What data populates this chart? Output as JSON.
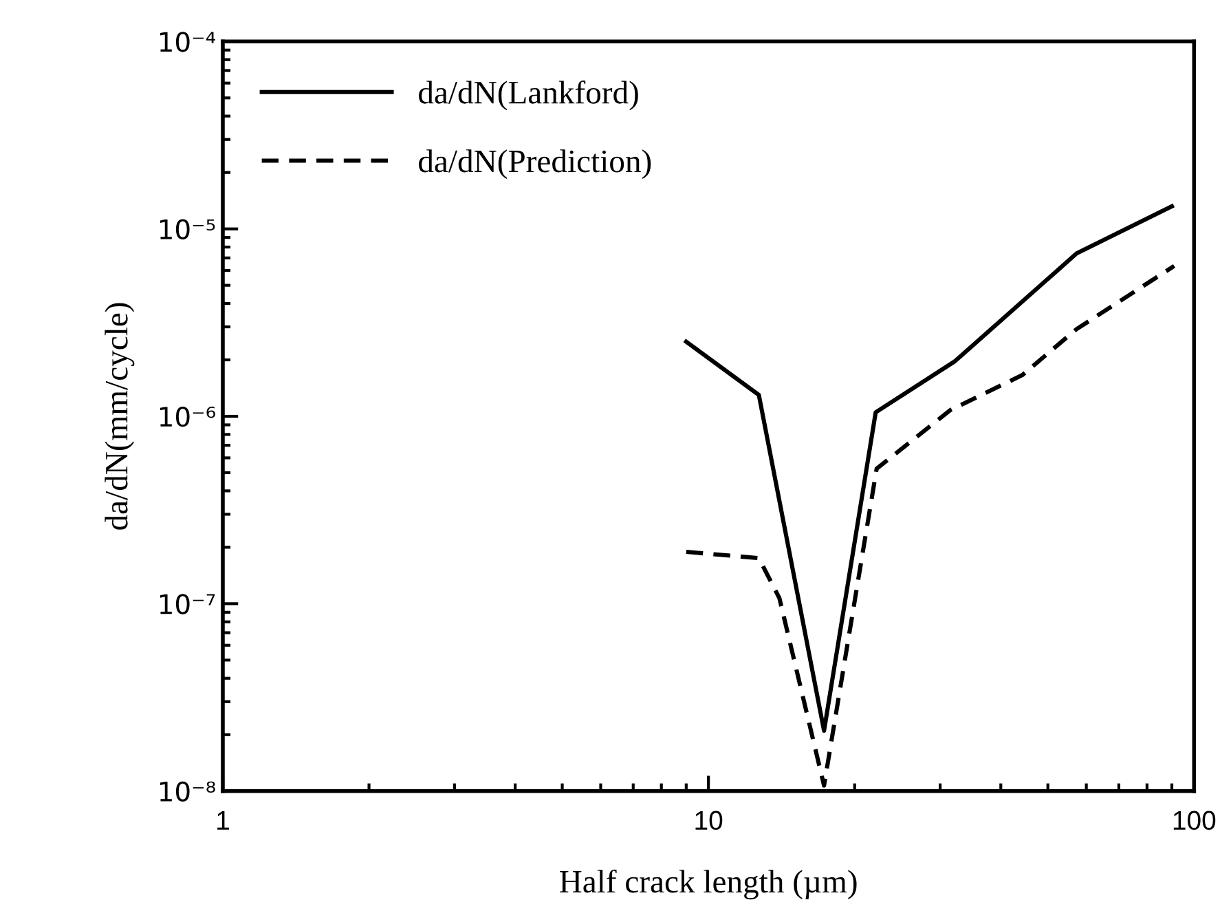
{
  "chart_data": {
    "type": "line",
    "xlabel": "Half crack length (µm)",
    "ylabel": "da/dN(mm/cycle)",
    "log": "xy",
    "xlim": [
      1,
      100
    ],
    "ylim": [
      1e-08,
      0.0001
    ],
    "xticks": [
      1,
      10,
      100
    ],
    "yticks": [
      {
        "value": 1e-08,
        "label": "10⁻⁸"
      },
      {
        "value": 1e-07,
        "label": "10⁻⁷"
      },
      {
        "value": 1e-06,
        "label": "10⁻⁶"
      },
      {
        "value": 1e-05,
        "label": "10⁻⁵"
      },
      {
        "value": 0.0001,
        "label": "10⁻⁴"
      }
    ],
    "legend": "top left",
    "grid": false,
    "marker": "none",
    "series": [
      {
        "name": "da/dN(Lankford)",
        "color": "#000000",
        "line_style": "solid",
        "x": [
          9.0,
          12.7,
          17.3,
          22.1,
          32.2,
          43.6,
          57.3,
          90
        ],
        "values": [
          2.5e-06,
          1.3e-06,
          2.1e-08,
          1.05e-06,
          1.97e-06,
          3.95e-06,
          7.4e-06,
          1.32e-05
        ]
      },
      {
        "name": "da/dN(Prediction)",
        "color": "#000000",
        "line_style": "dashed",
        "x": [
          9.0,
          12.7,
          14.0,
          17.3,
          22.2,
          31.5,
          44.3,
          57.3,
          91
        ],
        "values": [
          1.89e-07,
          1.75e-07,
          1.07e-07,
          1.07e-08,
          5.25e-07,
          1.08e-06,
          1.66e-06,
          2.92e-06,
          6.34e-06
        ]
      }
    ]
  }
}
